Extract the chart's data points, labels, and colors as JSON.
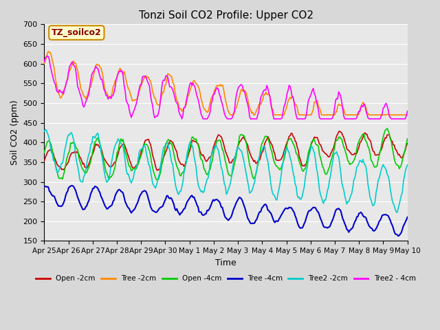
{
  "title": "Tonzi Soil CO2 Profile: Upper CO2",
  "xlabel": "Time",
  "ylabel": "Soil CO2 (ppm)",
  "ylim": [
    150,
    700
  ],
  "yticks": [
    150,
    200,
    250,
    300,
    350,
    400,
    450,
    500,
    550,
    600,
    650,
    700
  ],
  "background_color": "#e8e8e8",
  "plot_bg_color": "#e8e8e8",
  "legend_label": "TZ_soilco2",
  "legend_text_color": "#8b0000",
  "legend_bg": "#ffffcc",
  "legend_border": "#cc8800",
  "series_colors": {
    "Open -2cm": "#cc0000",
    "Tree -2cm": "#ff8800",
    "Open -4cm": "#00cc00",
    "Tree -4cm": "#0000cc",
    "Tree2 -2cm": "#00cccc",
    "Tree2 - 4cm": "#ff00ff"
  },
  "n_points": 360,
  "date_labels": [
    "Apr 25",
    "Apr 26",
    "Apr 27",
    "Apr 28",
    "Apr 29",
    "Apr 30",
    "May 1",
    "May 2",
    "May 3",
    "May 4",
    "May 5",
    "May 6",
    "May 7",
    "May 8",
    "May 9",
    "May 10"
  ],
  "n_days": 15
}
